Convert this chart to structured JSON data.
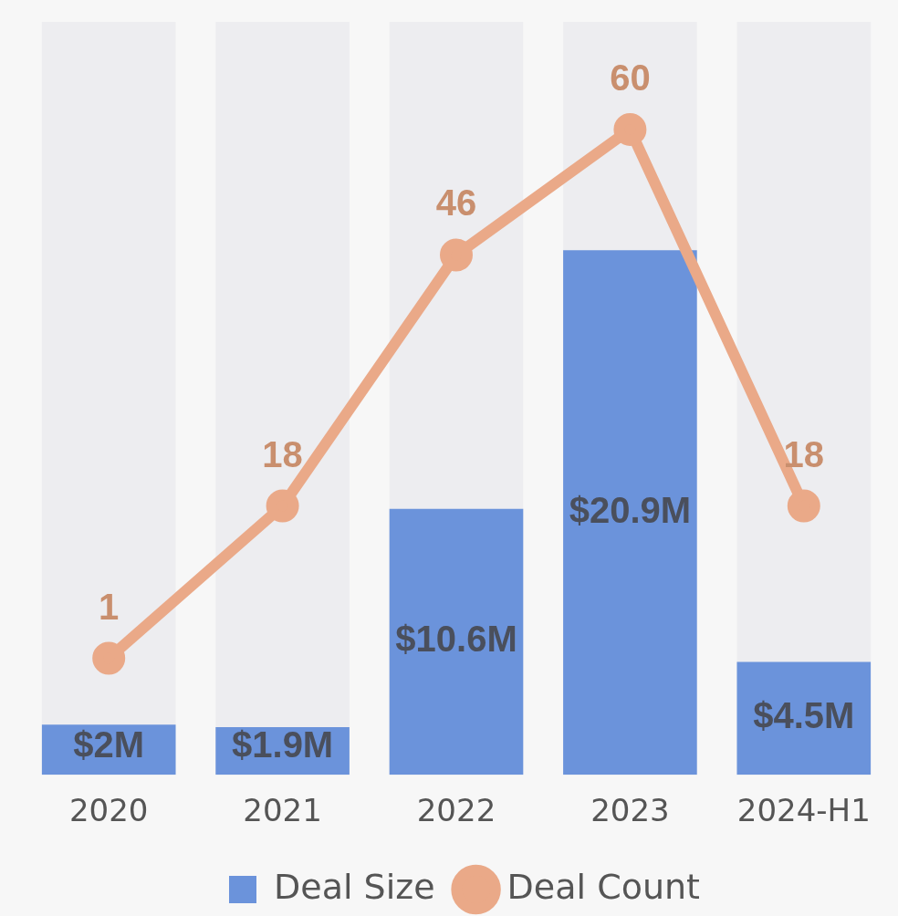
{
  "chart_data": {
    "type": "bar",
    "categories": [
      "2020",
      "2021",
      "2022",
      "2023",
      "2024-H1"
    ],
    "series": [
      {
        "name": "Deal Size",
        "color": "#6b93db",
        "values": [
          2,
          1.9,
          10.6,
          20.9,
          4.5
        ],
        "value_labels": [
          "$2M",
          "$1.9M",
          "$10.6M",
          "$20.9M",
          "$4.5M"
        ]
      },
      {
        "name": "Deal Count",
        "type": "line",
        "axis": "y2",
        "color": "#eaa988",
        "values": [
          1,
          18,
          46,
          60,
          18
        ],
        "value_labels": [
          "1",
          "18",
          "46",
          "60",
          "18"
        ]
      }
    ],
    "ylim": [
      0,
      30
    ],
    "y2lim": [
      -12,
      72
    ],
    "legend": "bottom",
    "marker": "circle"
  }
}
